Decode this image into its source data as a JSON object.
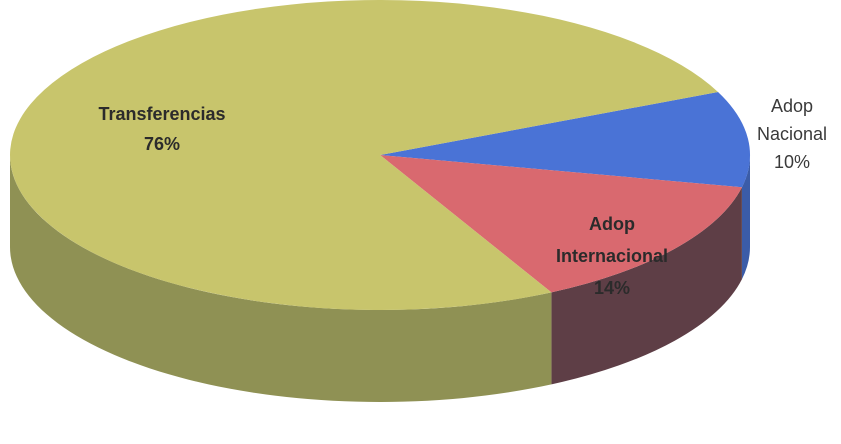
{
  "chart_data": {
    "type": "pie",
    "title": "",
    "series": [
      {
        "categories": [
          "Adop Nacional",
          "Adop Internacional",
          "Transferencias"
        ],
        "values": [
          10,
          14,
          76
        ],
        "labels": [
          "10%",
          "14%",
          "76%"
        ],
        "colors": [
          "#4a73d6",
          "#d9696f",
          "#c8c56c"
        ],
        "side_colors": [
          "#3b5ca8",
          "#5e3e46",
          "#8f9154"
        ]
      }
    ],
    "legend": "none",
    "style": "3d"
  }
}
